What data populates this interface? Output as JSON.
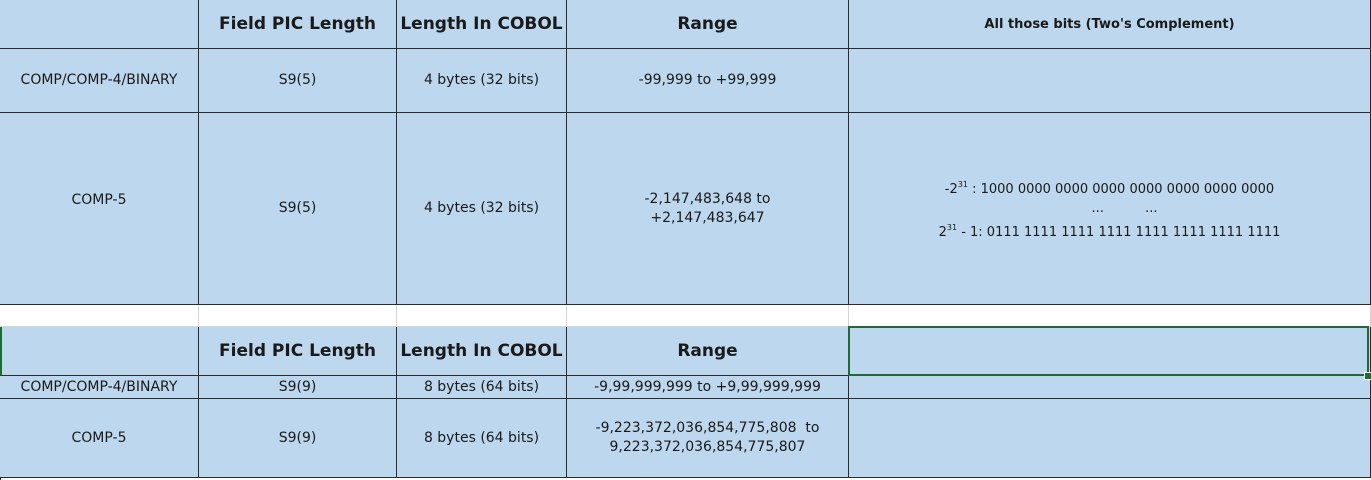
{
  "table1": {
    "header": {
      "col0": "",
      "col1": "Field PIC Length",
      "col2": "Length In COBOL",
      "col3": "Range",
      "col4": "All those bits (Two's Complement)"
    },
    "rows": [
      {
        "type": "COMP/COMP-4/BINARY",
        "pic": "S9(5)",
        "length": "4 bytes (32 bits)",
        "range": "-99,999 to +99,999",
        "bits": ""
      },
      {
        "type": "COMP-5",
        "pic": "S9(5)",
        "length": "4 bytes (32 bits)",
        "range_line1": "-2,147,483,648 to",
        "range_line2": "+2,147,483,647",
        "bits_line1_base": "-2",
        "bits_line1_exp": "31",
        "bits_line1_rest": " : 1000 0000 0000 0000 0000 0000 0000 0000",
        "bits_line2": "...          ...",
        "bits_line3_base": "2",
        "bits_line3_exp": "31",
        "bits_line3_rest": " - 1: 0111 1111 1111 1111 1111 1111 1111 1111"
      }
    ]
  },
  "table2": {
    "header": {
      "col0": "",
      "col1": "Field PIC Length",
      "col2": "Length In COBOL",
      "col3": "Range",
      "col4": ""
    },
    "rows": [
      {
        "type": "COMP/COMP-4/BINARY",
        "pic": "S9(9)",
        "length": "8 bytes (64 bits)",
        "range": "-9,99,999,999 to +9,99,999,999",
        "bits": ""
      },
      {
        "type": "COMP-5",
        "pic": "S9(9)",
        "length": "8 bytes (64 bits)",
        "range_line1": "-9,223,372,036,854,775,808  to",
        "range_line2": "9,223,372,036,854,775,807",
        "bits": ""
      }
    ]
  },
  "colors": {
    "cell_fill": "#bdd7ee",
    "grid_line": "#2b2b2b",
    "selection": "#1e6b34"
  }
}
